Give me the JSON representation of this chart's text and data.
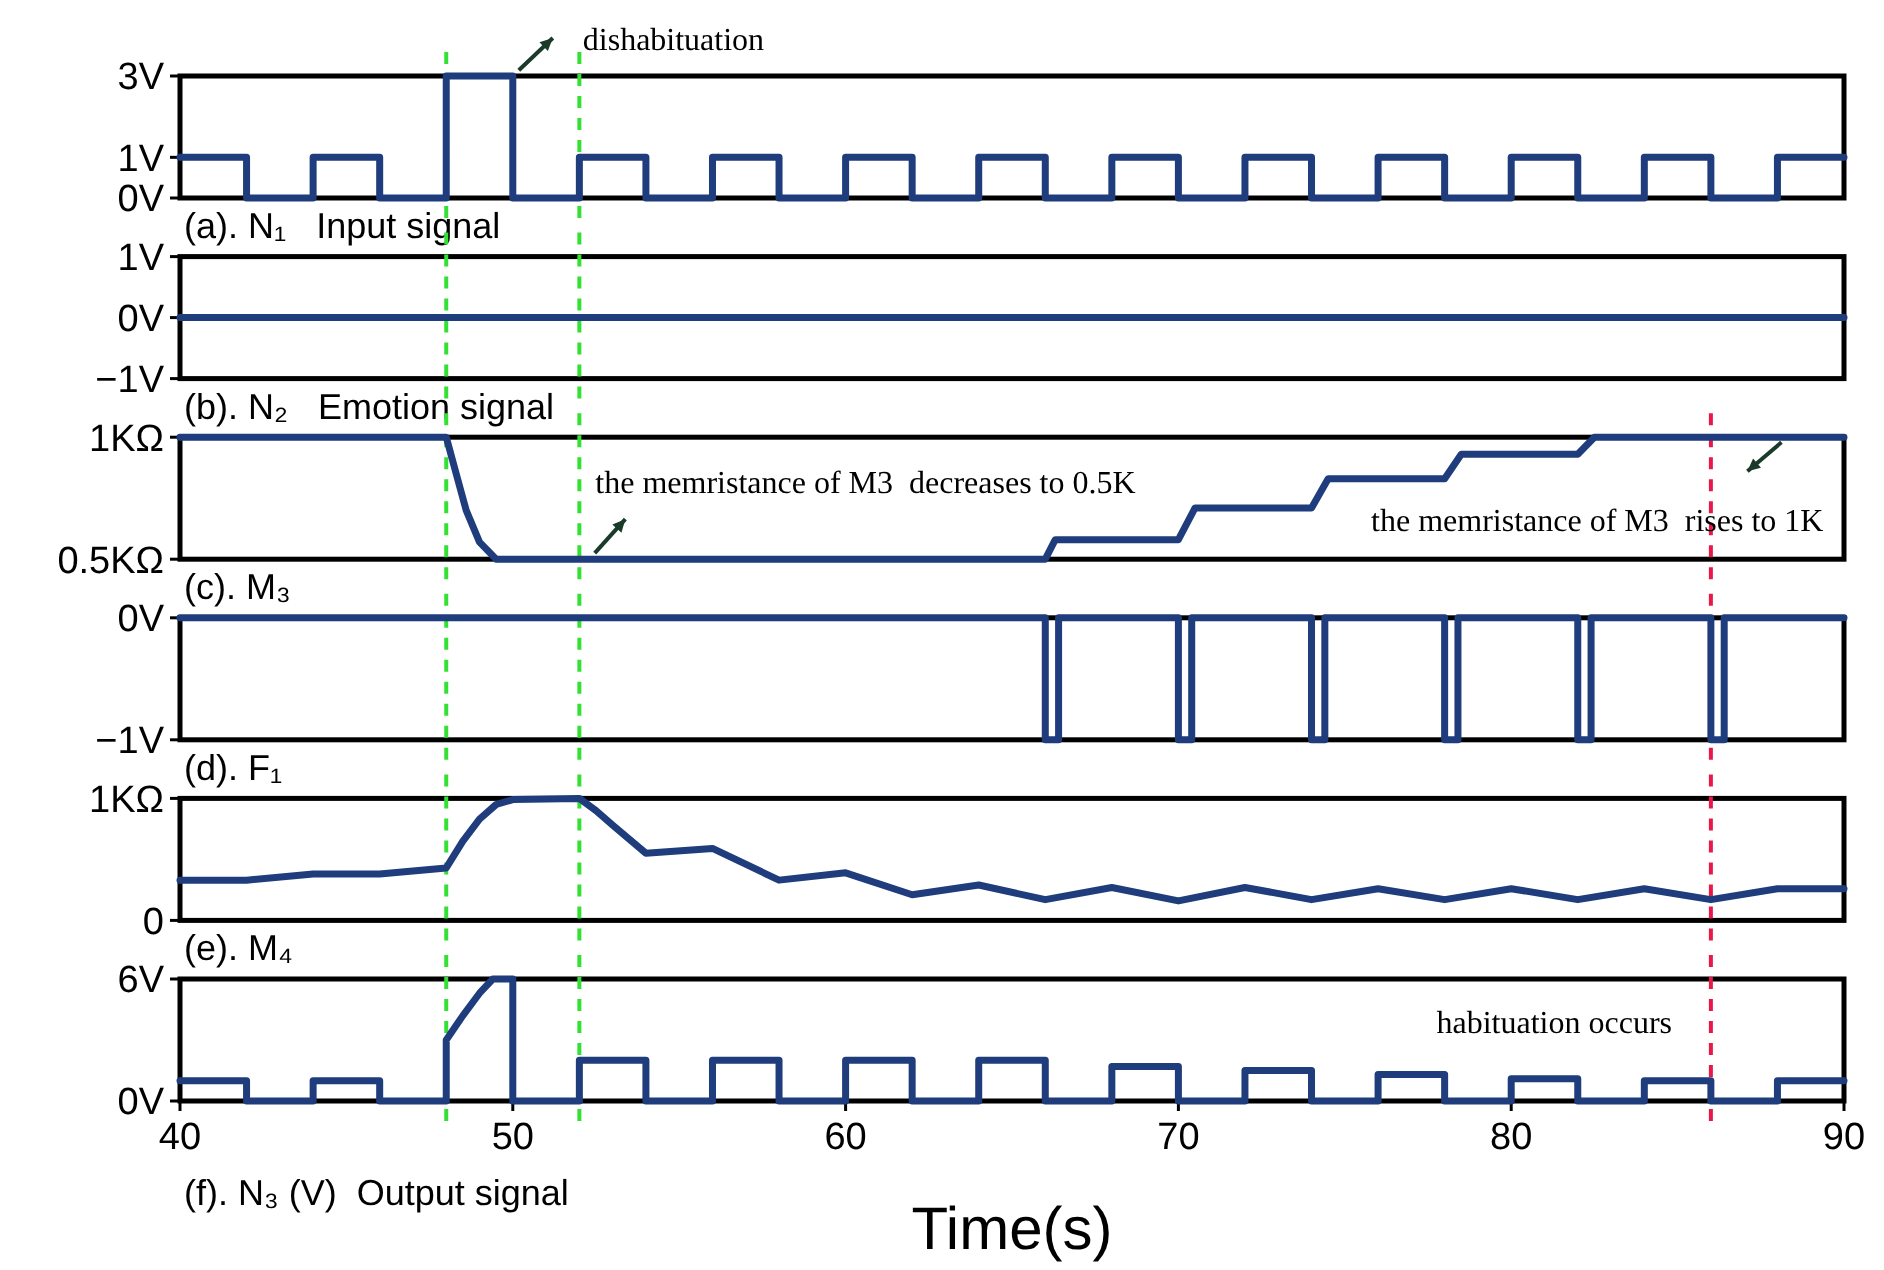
{
  "chart_data": [
    {
      "type": "step",
      "title": "(a). N₁   Input signal",
      "xlim": [
        40,
        90
      ],
      "ylim": [
        0,
        3
      ],
      "yticks": [
        {
          "value": 0,
          "label": "0V"
        },
        {
          "value": 1,
          "label": "1V"
        },
        {
          "value": 3,
          "label": "3V"
        }
      ],
      "tick_labels": "y",
      "series": [
        {
          "color": "#1f3c7c",
          "x": [
            40,
            42,
            44,
            46,
            48,
            50,
            52,
            54,
            56,
            58,
            60,
            62,
            64,
            66,
            68,
            70,
            72,
            74,
            76,
            78,
            80,
            82,
            84,
            86,
            88,
            90
          ],
          "values": [
            1,
            0,
            1,
            0,
            3,
            0,
            1,
            0,
            1,
            0,
            1,
            0,
            1,
            0,
            1,
            0,
            1,
            0,
            1,
            0,
            1,
            0,
            1,
            0,
            1,
            1
          ]
        }
      ],
      "ref_lines": [
        {
          "axis": "x",
          "value": 48,
          "color": "#33e033",
          "line_style": "dashed"
        },
        {
          "axis": "x",
          "value": 52,
          "color": "#33e033",
          "line_style": "dashed"
        }
      ],
      "annotations": [
        {
          "text": "dishabituation",
          "x": 50,
          "y": 3
        }
      ]
    },
    {
      "type": "step",
      "title": "(b). N₂   Emotion signal",
      "xlim": [
        40,
        90
      ],
      "ylim": [
        -1,
        1
      ],
      "yticks": [
        {
          "value": -1,
          "label": "−1V"
        },
        {
          "value": 0,
          "label": "0V"
        },
        {
          "value": 1,
          "label": "1V"
        }
      ],
      "tick_labels": "y",
      "series": [
        {
          "color": "#1f3c7c",
          "x": [
            40,
            90
          ],
          "values": [
            0,
            0
          ]
        }
      ],
      "ref_lines": [
        {
          "axis": "x",
          "value": 48,
          "color": "#33e033",
          "line_style": "dashed"
        },
        {
          "axis": "x",
          "value": 52,
          "color": "#33e033",
          "line_style": "dashed"
        }
      ]
    },
    {
      "type": "line",
      "title": "(c). M₃",
      "xlim": [
        40,
        90
      ],
      "ylim": [
        0.5,
        1
      ],
      "yticks": [
        {
          "value": 0.5,
          "label": "0.5KΩ"
        },
        {
          "value": 1,
          "label": "1KΩ"
        }
      ],
      "tick_labels": "y",
      "series": [
        {
          "color": "#1f3c7c",
          "x": [
            40,
            48,
            48.3,
            48.6,
            49,
            49.5,
            66,
            66.3,
            70,
            70.5,
            74,
            74.5,
            78,
            78.5,
            82,
            82.5,
            90
          ],
          "values": [
            1,
            1,
            0.85,
            0.7,
            0.57,
            0.5,
            0.5,
            0.58,
            0.58,
            0.71,
            0.71,
            0.83,
            0.83,
            0.93,
            0.93,
            1,
            1
          ]
        }
      ],
      "ref_lines": [
        {
          "axis": "x",
          "value": 48,
          "color": "#33e033",
          "line_style": "dashed"
        },
        {
          "axis": "x",
          "value": 52,
          "color": "#33e033",
          "line_style": "dashed"
        },
        {
          "axis": "x",
          "value": 86,
          "color": "#e8194a",
          "line_style": "dashed"
        }
      ],
      "annotations": [
        {
          "text": "the memristance of M3  decreases to 0.5K",
          "x": 52.3,
          "y": 0.5
        },
        {
          "text": "the memristance of M3  rises to 1K",
          "x": 88.3,
          "y": 1
        }
      ]
    },
    {
      "type": "step",
      "title": "(d). F₁",
      "xlim": [
        40,
        90
      ],
      "ylim": [
        -1,
        0
      ],
      "yticks": [
        {
          "value": -1,
          "label": "−1V"
        },
        {
          "value": 0,
          "label": "0V"
        }
      ],
      "tick_labels": "y",
      "series": [
        {
          "color": "#1f3c7c",
          "x": [
            40,
            66,
            66.4,
            70,
            70.4,
            74,
            74.4,
            78,
            78.4,
            82,
            82.4,
            86,
            86.4,
            90
          ],
          "values": [
            0,
            -1,
            0,
            -1,
            0,
            -1,
            0,
            -1,
            0,
            -1,
            0,
            -1,
            0,
            0
          ]
        }
      ],
      "ref_lines": [
        {
          "axis": "x",
          "value": 48,
          "color": "#33e033",
          "line_style": "dashed"
        },
        {
          "axis": "x",
          "value": 52,
          "color": "#33e033",
          "line_style": "dashed"
        },
        {
          "axis": "x",
          "value": 86,
          "color": "#e8194a",
          "line_style": "dashed"
        }
      ]
    },
    {
      "type": "line",
      "title": "(e). M₄",
      "xlim": [
        40,
        90
      ],
      "ylim": [
        0,
        1
      ],
      "yticks": [
        0,
        {
          "value": 1,
          "label": "1KΩ"
        }
      ],
      "tick_labels": "y",
      "series": [
        {
          "color": "#1f3c7c",
          "x": [
            40,
            42,
            44,
            46,
            48,
            48.5,
            49,
            49.5,
            50,
            52,
            52.5,
            53,
            54,
            56,
            58,
            60,
            62,
            64,
            66,
            68,
            70,
            72,
            74,
            76,
            78,
            80,
            82,
            84,
            86,
            88,
            90
          ],
          "values": [
            0.33,
            0.33,
            0.38,
            0.38,
            0.43,
            0.65,
            0.83,
            0.95,
            0.99,
            1,
            0.9,
            0.78,
            0.55,
            0.59,
            0.33,
            0.39,
            0.21,
            0.29,
            0.17,
            0.27,
            0.16,
            0.27,
            0.17,
            0.26,
            0.17,
            0.26,
            0.17,
            0.26,
            0.17,
            0.26,
            0.26
          ]
        }
      ],
      "ref_lines": [
        {
          "axis": "x",
          "value": 48,
          "color": "#33e033",
          "line_style": "dashed"
        },
        {
          "axis": "x",
          "value": 52,
          "color": "#33e033",
          "line_style": "dashed"
        },
        {
          "axis": "x",
          "value": 86,
          "color": "#e8194a",
          "line_style": "dashed"
        }
      ]
    },
    {
      "type": "line",
      "title": "(f). N₃ (V)  Output signal",
      "xlabel": "Time(s)",
      "xlim": [
        40,
        90
      ],
      "xticks": [
        40,
        50,
        60,
        70,
        80,
        90
      ],
      "ylim": [
        0,
        6
      ],
      "yticks": [
        {
          "value": 0,
          "label": "0V"
        },
        {
          "value": 6,
          "label": "6V"
        }
      ],
      "series": [
        {
          "color": "#1f3c7c",
          "x": [
            40,
            42,
            42,
            44,
            44,
            46,
            46,
            48,
            48,
            48.5,
            49,
            49.4,
            50,
            50,
            52,
            52,
            54,
            54,
            56,
            56,
            58,
            58,
            60,
            60,
            62,
            62,
            64,
            64,
            66,
            66,
            68,
            68,
            70,
            70,
            72,
            72,
            74,
            74,
            76,
            76,
            78,
            78,
            80,
            80,
            82,
            82,
            84,
            84,
            86,
            86,
            88,
            88,
            90
          ],
          "values": [
            1,
            1,
            0,
            0,
            1,
            1,
            0,
            0,
            3,
            4.2,
            5.3,
            6,
            6,
            0,
            0,
            2,
            2,
            0,
            0,
            2,
            2,
            0,
            0,
            2,
            2,
            0,
            0,
            2,
            2,
            0,
            0,
            1.7,
            1.7,
            0,
            0,
            1.5,
            1.5,
            0,
            0,
            1.3,
            1.3,
            0,
            0,
            1.1,
            1.1,
            0,
            0,
            1,
            1,
            0,
            0,
            1,
            1
          ]
        }
      ],
      "ref_lines": [
        {
          "axis": "x",
          "value": 48,
          "color": "#33e033",
          "line_style": "dashed"
        },
        {
          "axis": "x",
          "value": 52,
          "color": "#33e033",
          "line_style": "dashed"
        },
        {
          "axis": "x",
          "value": 86,
          "color": "#e8194a",
          "line_style": "dashed"
        }
      ],
      "annotations": [
        "habituation occurs"
      ]
    }
  ]
}
